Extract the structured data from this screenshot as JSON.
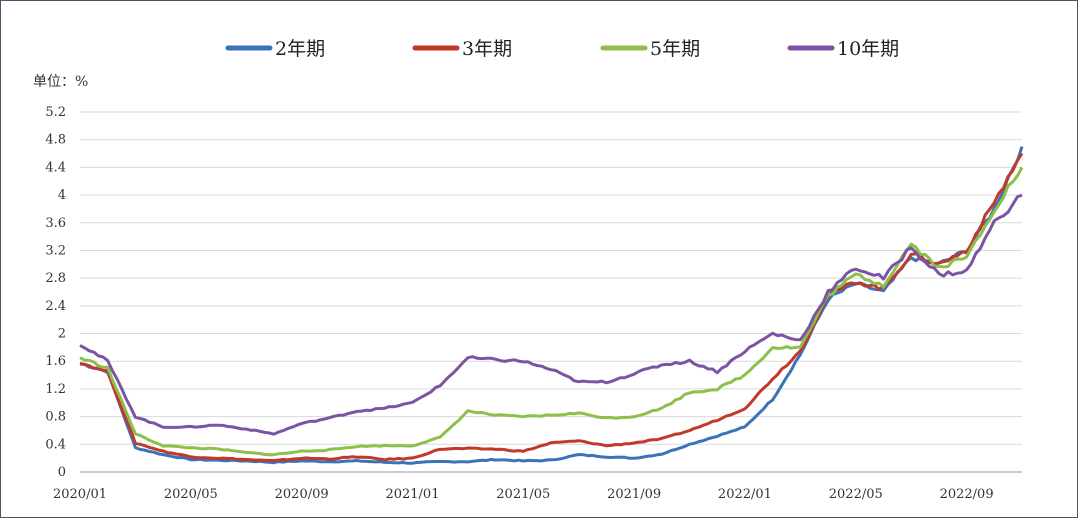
{
  "chart_data": {
    "type": "line",
    "unit_label": "单位：%",
    "ylim": [
      0,
      5.2
    ],
    "yticks": [
      "0",
      "0.4",
      "0.8",
      "1.2",
      "1.6",
      "2",
      "2.4",
      "2.8",
      "3.2",
      "3.6",
      "4",
      "4.4",
      "4.8",
      "5.2"
    ],
    "xticks": [
      "2020/01",
      "2020/05",
      "2020/09",
      "2021/01",
      "2021/05",
      "2021/09",
      "2022/01",
      "2022/05",
      "2022/09"
    ],
    "grid": "horizontal",
    "legend": "top",
    "x_dates": [
      "2020-01",
      "2020-02",
      "2020-03",
      "2020-04",
      "2020-05",
      "2020-06",
      "2020-07",
      "2020-08",
      "2020-09",
      "2020-10",
      "2020-11",
      "2020-12",
      "2021-01",
      "2021-02",
      "2021-03",
      "2021-04",
      "2021-05",
      "2021-06",
      "2021-07",
      "2021-08",
      "2021-09",
      "2021-10",
      "2021-11",
      "2021-12",
      "2022-01",
      "2022-02",
      "2022-03",
      "2022-04",
      "2022-05",
      "2022-06",
      "2022-07",
      "2022-08",
      "2022-09",
      "2022-10",
      "2022-11"
    ],
    "series": [
      {
        "name": "2年期",
        "color": "#3b73b9",
        "values": [
          1.57,
          1.45,
          0.35,
          0.25,
          0.18,
          0.17,
          0.16,
          0.14,
          0.16,
          0.15,
          0.16,
          0.14,
          0.13,
          0.15,
          0.15,
          0.18,
          0.16,
          0.17,
          0.25,
          0.22,
          0.2,
          0.26,
          0.4,
          0.52,
          0.65,
          1.05,
          1.7,
          2.5,
          2.72,
          2.6,
          3.1,
          3.0,
          3.2,
          3.8,
          4.7
        ]
      },
      {
        "name": "3年期",
        "color": "#c0392b",
        "values": [
          1.58,
          1.45,
          0.42,
          0.3,
          0.22,
          0.2,
          0.18,
          0.16,
          0.2,
          0.19,
          0.22,
          0.18,
          0.2,
          0.33,
          0.34,
          0.33,
          0.3,
          0.42,
          0.45,
          0.38,
          0.42,
          0.48,
          0.6,
          0.75,
          0.92,
          1.35,
          1.75,
          2.55,
          2.75,
          2.65,
          3.15,
          3.0,
          3.2,
          3.9,
          4.6
        ]
      },
      {
        "name": "5年期",
        "color": "#8cc04a",
        "values": [
          1.65,
          1.5,
          0.55,
          0.38,
          0.35,
          0.33,
          0.28,
          0.25,
          0.3,
          0.32,
          0.37,
          0.38,
          0.38,
          0.5,
          0.88,
          0.82,
          0.8,
          0.82,
          0.85,
          0.78,
          0.8,
          0.92,
          1.15,
          1.2,
          1.4,
          1.8,
          1.8,
          2.55,
          2.85,
          2.7,
          3.3,
          2.95,
          3.1,
          3.8,
          4.4
        ]
      },
      {
        "name": "10年期",
        "color": "#7b55a3",
        "values": [
          1.85,
          1.6,
          0.8,
          0.65,
          0.65,
          0.68,
          0.62,
          0.55,
          0.7,
          0.78,
          0.88,
          0.92,
          1.0,
          1.25,
          1.65,
          1.62,
          1.6,
          1.48,
          1.3,
          1.3,
          1.42,
          1.55,
          1.6,
          1.45,
          1.75,
          2.0,
          1.9,
          2.6,
          2.95,
          2.8,
          3.25,
          2.85,
          2.9,
          3.6,
          4.0
        ]
      }
    ]
  }
}
